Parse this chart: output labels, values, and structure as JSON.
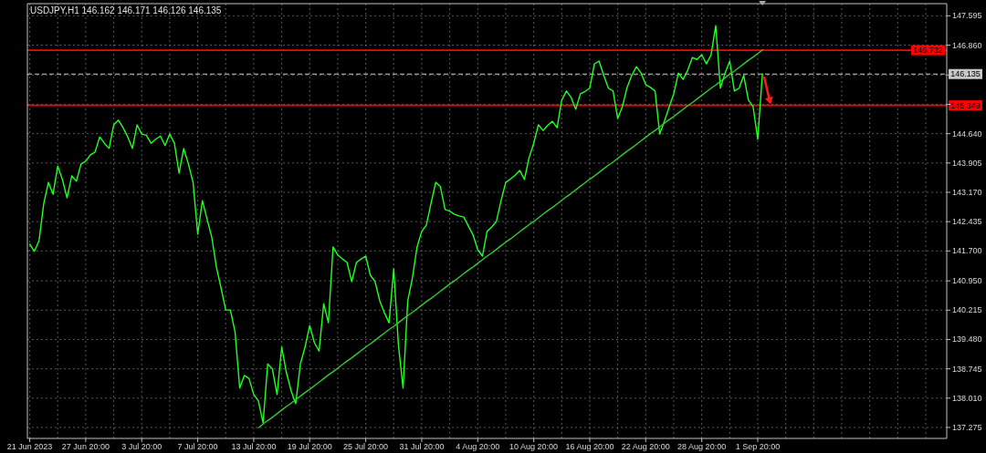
{
  "chart_data": {
    "type": "line",
    "title": "USDJPY,H1 146.162 146.171 146.126 146.135",
    "categories": [
      "21 Jun 2023",
      null,
      null,
      null,
      null,
      null,
      null,
      null,
      null,
      null,
      null,
      null,
      "27 Jun 20:00",
      null,
      null,
      null,
      null,
      null,
      null,
      null,
      null,
      null,
      null,
      null,
      "3 Jul 20:00",
      null,
      null,
      null,
      null,
      null,
      null,
      null,
      null,
      null,
      null,
      null,
      "7 Jul 20:00",
      null,
      null,
      null,
      null,
      null,
      null,
      null,
      null,
      null,
      null,
      null,
      "13 Jul 20:00",
      null,
      null,
      null,
      null,
      null,
      null,
      null,
      null,
      null,
      null,
      null,
      "19 Jul 20:00",
      null,
      null,
      null,
      null,
      null,
      null,
      null,
      null,
      null,
      null,
      null,
      "25 Jul 20:00",
      null,
      null,
      null,
      null,
      null,
      null,
      null,
      null,
      null,
      null,
      null,
      "31 Jul 20:00",
      null,
      null,
      null,
      null,
      null,
      null,
      null,
      null,
      null,
      null,
      null,
      "4 Aug 20:00",
      null,
      null,
      null,
      null,
      null,
      null,
      null,
      null,
      null,
      null,
      null,
      "10 Aug 20:00",
      null,
      null,
      null,
      null,
      null,
      null,
      null,
      null,
      null,
      null,
      null,
      "16 Aug 20:00",
      null,
      null,
      null,
      null,
      null,
      null,
      null,
      null,
      null,
      null,
      null,
      "22 Aug 20:00",
      null,
      null,
      null,
      null,
      null,
      null,
      null,
      null,
      null,
      null,
      null,
      "28 Aug 20:00",
      null,
      null,
      null,
      null,
      null,
      null,
      null,
      null,
      null,
      null,
      null,
      "1 Sep 20:00",
      null,
      null,
      null,
      null,
      null,
      null,
      null,
      null,
      null,
      null,
      null,
      null,
      null,
      null,
      null,
      null,
      null,
      null,
      null,
      null,
      null,
      null,
      null,
      null,
      null,
      null,
      null,
      null,
      null,
      null,
      null,
      null,
      null,
      null,
      null,
      null,
      null,
      null,
      null,
      null
    ],
    "series": [
      {
        "color": "#22ff22",
        "values": [
          141.87,
          141.69,
          141.96,
          142.88,
          143.42,
          143.12,
          143.83,
          143.49,
          143.03,
          143.58,
          143.45,
          143.88,
          143.95,
          144.11,
          144.18,
          144.56,
          144.4,
          144.27,
          144.86,
          144.98,
          144.79,
          144.56,
          144.27,
          144.86,
          144.63,
          144.6,
          144.4,
          144.5,
          144.58,
          144.34,
          144.63,
          144.4,
          143.65,
          144.27,
          143.88,
          143.42,
          142.12,
          142.96,
          142.5,
          142.05,
          141.3,
          140.77,
          140.22,
          140.22,
          139.67,
          138.26,
          138.58,
          138.5,
          138.1,
          137.94,
          137.39,
          138.87,
          138.74,
          138.1,
          139.29,
          138.65,
          138.2,
          137.87,
          138.87,
          139.29,
          139.83,
          139.4,
          139.19,
          140.38,
          139.9,
          141.8,
          141.6,
          141.5,
          141.41,
          140.93,
          141.41,
          141.5,
          141.57,
          141.09,
          140.93,
          140.45,
          140.15,
          139.9,
          141.25,
          139.35,
          138.26,
          140.45,
          141.02,
          141.8,
          142.19,
          142.35,
          142.9,
          143.42,
          143.31,
          142.74,
          142.7,
          142.62,
          142.58,
          142.55,
          142.32,
          142.1,
          141.73,
          141.57,
          142.19,
          142.3,
          142.44,
          142.96,
          143.42,
          143.5,
          143.6,
          143.72,
          143.49,
          144.04,
          144.4,
          144.86,
          144.72,
          144.85,
          144.95,
          144.79,
          145.48,
          145.71,
          145.55,
          145.25,
          145.64,
          145.7,
          145.78,
          146.39,
          146.46,
          146.1,
          145.78,
          145.71,
          145.02,
          145.32,
          145.8,
          146.1,
          146.32,
          146.16,
          145.87,
          145.8,
          145.71,
          144.63,
          144.95,
          145.3,
          145.64,
          146.16,
          146.0,
          146.23,
          146.55,
          146.5,
          146.62,
          146.39,
          146.62,
          147.35,
          145.78,
          146.16,
          146.46,
          145.71,
          145.78,
          146.1,
          145.48,
          145.32,
          144.5,
          146.14,
          null,
          null,
          null,
          null,
          null,
          null,
          null,
          null,
          null,
          null,
          null,
          null,
          null,
          null,
          null,
          null,
          null,
          null,
          null,
          null,
          null,
          null,
          null,
          null,
          null,
          null,
          null,
          null,
          null,
          null,
          null,
          null,
          null,
          null,
          null,
          null,
          null,
          null,
          null
        ]
      },
      {
        "type": "line",
        "color": "#33cc33",
        "values": [
          null,
          null,
          null,
          null,
          null,
          null,
          null,
          null,
          null,
          null,
          null,
          null,
          null,
          null,
          null,
          null,
          null,
          null,
          null,
          null,
          null,
          null,
          null,
          null,
          null,
          null,
          null,
          null,
          null,
          null,
          null,
          null,
          null,
          null,
          null,
          null,
          null,
          null,
          null,
          null,
          null,
          null,
          null,
          null,
          null,
          null,
          null,
          null,
          null,
          137.27,
          137.36,
          137.45,
          137.53,
          137.62,
          137.71,
          137.8,
          137.88,
          137.97,
          138.06,
          138.15,
          138.23,
          138.32,
          138.41,
          138.5,
          138.59,
          138.67,
          138.76,
          138.85,
          138.94,
          139.02,
          139.11,
          139.2,
          139.29,
          139.37,
          139.46,
          139.55,
          139.64,
          139.73,
          139.81,
          139.9,
          139.99,
          140.08,
          140.16,
          140.25,
          140.34,
          140.43,
          140.51,
          140.6,
          140.69,
          140.78,
          140.87,
          140.95,
          141.04,
          141.13,
          141.22,
          141.3,
          141.39,
          141.48,
          141.57,
          141.65,
          141.74,
          141.83,
          141.92,
          142.0,
          142.09,
          142.18,
          142.27,
          142.36,
          142.44,
          142.53,
          142.62,
          142.71,
          142.79,
          142.88,
          142.97,
          143.06,
          143.14,
          143.23,
          143.32,
          143.41,
          143.5,
          143.58,
          143.67,
          143.76,
          143.85,
          143.93,
          144.02,
          144.11,
          144.2,
          144.28,
          144.37,
          144.46,
          144.55,
          144.64,
          144.72,
          144.81,
          144.9,
          144.99,
          145.07,
          145.16,
          145.25,
          145.34,
          145.42,
          145.51,
          145.6,
          145.69,
          145.78,
          145.86,
          145.95,
          146.04,
          146.13,
          146.21,
          146.3,
          146.39,
          146.48,
          146.56,
          146.65,
          146.74,
          null,
          null,
          null,
          null,
          null,
          null,
          null,
          null,
          null,
          null,
          null,
          null,
          null,
          null,
          null,
          null,
          null,
          null,
          null,
          null,
          null,
          null,
          null,
          null,
          null,
          null,
          null,
          null,
          null,
          null,
          null,
          null,
          null,
          null,
          null,
          null,
          null,
          null,
          null
        ]
      }
    ],
    "ylim": [
      137.0,
      147.9
    ],
    "yticks": [
      147.595,
      {
        "value": 146.86,
        "label": "146.860"
      },
      {
        "value": 146.11,
        "label": null
      },
      {
        "value": 145.375,
        "label": null
      },
      {
        "value": 144.64,
        "label": "144.640"
      },
      143.905,
      {
        "value": 143.17,
        "label": "143.170"
      },
      142.435,
      {
        "value": 141.7,
        "label": "141.700"
      },
      {
        "value": 140.95,
        "label": "140.950"
      },
      140.215,
      {
        "value": 139.48,
        "label": "139.480"
      },
      138.745,
      {
        "value": 138.01,
        "label": "138.010"
      },
      137.275
    ],
    "grid": true,
    "ref_lines": [
      {
        "axis": "y",
        "value": 146.732,
        "label": "146.732",
        "color": "#ff0000"
      },
      {
        "axis": "y",
        "value": 145.349,
        "label": "145.349",
        "color": "#ff0000"
      },
      {
        "axis": "y",
        "value": 146.135,
        "label": "146.135",
        "color": "#c8c8c8",
        "line_style": "dashed"
      }
    ]
  }
}
